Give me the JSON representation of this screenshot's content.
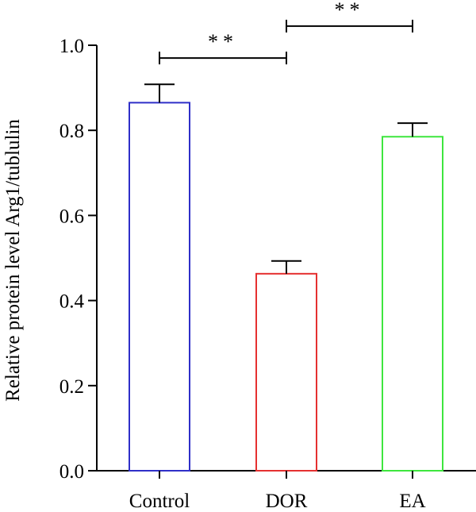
{
  "chart_data": {
    "type": "bar",
    "title": "",
    "xlabel": "",
    "ylabel": "Relative protein level Arg1/tublulin",
    "ylim": [
      0,
      1.0
    ],
    "yticks": [
      "0.0",
      "0.2",
      "0.4",
      "0.6",
      "0.8",
      "1.0"
    ],
    "categories": [
      "Control",
      "DOR",
      "EA"
    ],
    "values": [
      0.865,
      0.463,
      0.785
    ],
    "errors": [
      0.043,
      0.03,
      0.032
    ],
    "colors": [
      "#2f2fc8",
      "#e53030",
      "#3ee63e"
    ],
    "grid": false,
    "significance": [
      {
        "from": 0,
        "to": 1,
        "label": "**",
        "y": 0.97
      },
      {
        "from": 1,
        "to": 2,
        "label": "**",
        "y": 1.045
      }
    ]
  }
}
